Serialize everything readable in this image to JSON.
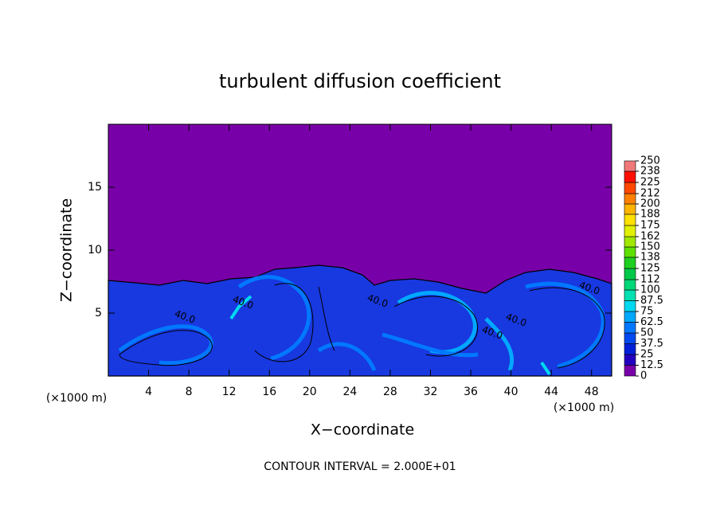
{
  "chart_data": {
    "type": "contour",
    "title": "turbulent diffusion coefficient",
    "x_label": "X−coordinate",
    "y_label": "Z−coordinate",
    "x_unit_label": "(×1000 m)",
    "y_unit_label": "(×1000 m)",
    "footer": "CONTOUR INTERVAL = 2.000E+01",
    "xlim": [
      0,
      50
    ],
    "ylim": [
      0,
      20
    ],
    "xticks": [
      4,
      8,
      12,
      16,
      20,
      24,
      28,
      32,
      36,
      40,
      44,
      48
    ],
    "yticks": [
      5,
      10,
      15
    ],
    "contour_labels": [
      "40.0",
      "40.0",
      "40.0",
      "40.0",
      "40.0",
      "40.0"
    ],
    "colorbar": {
      "levels": [
        0,
        12.5,
        25,
        37.5,
        50,
        62.5,
        75,
        87.5,
        100,
        112,
        125,
        138,
        150,
        162,
        175,
        188,
        200,
        212,
        225,
        238,
        250
      ],
      "colors": [
        "#7800a8",
        "#2400c0",
        "#0020d8",
        "#0048f0",
        "#0078ff",
        "#00a8ff",
        "#00d8f0",
        "#00e0b0",
        "#00d878",
        "#00c848",
        "#20d020",
        "#60e000",
        "#a0e800",
        "#e0f000",
        "#ffe000",
        "#ffb400",
        "#ff8000",
        "#ff4800",
        "#ff1000",
        "#f07878"
      ]
    }
  }
}
